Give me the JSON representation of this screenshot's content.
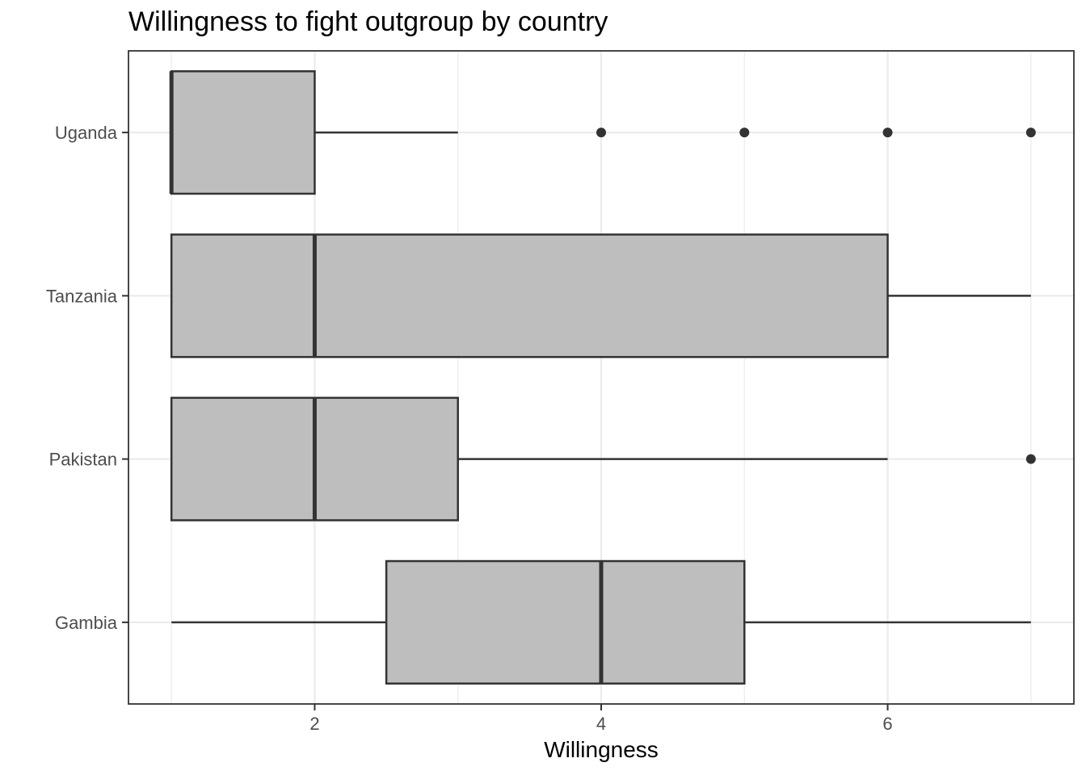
{
  "chart_data": {
    "type": "boxplot",
    "orientation": "horizontal",
    "title": "Willingness to fight outgroup by country",
    "xlabel": "Willingness",
    "ylabel": "",
    "xlim": [
      0.7,
      7.3
    ],
    "x_ticks": [
      2,
      4,
      6
    ],
    "grid": true,
    "categories": [
      "Gambia",
      "Pakistan",
      "Tanzania",
      "Uganda"
    ],
    "boxes": [
      {
        "category": "Gambia",
        "whisker_low": 1,
        "q1": 2.5,
        "median": 4,
        "q3": 5,
        "whisker_high": 7,
        "outliers": []
      },
      {
        "category": "Pakistan",
        "whisker_low": 1,
        "q1": 1,
        "median": 2,
        "q3": 3,
        "whisker_high": 6,
        "outliers": [
          7
        ]
      },
      {
        "category": "Tanzania",
        "whisker_low": 1,
        "q1": 1,
        "median": 2,
        "q3": 6,
        "whisker_high": 7,
        "outliers": []
      },
      {
        "category": "Uganda",
        "whisker_low": 1,
        "q1": 1,
        "median": 1,
        "q3": 2,
        "whisker_high": 3,
        "outliers": [
          4,
          5,
          6,
          7
        ]
      }
    ],
    "colors": {
      "box_fill": "#bebebe",
      "box_stroke": "#333333",
      "grid": "#ebebeb",
      "panel_border": "#333333"
    }
  }
}
